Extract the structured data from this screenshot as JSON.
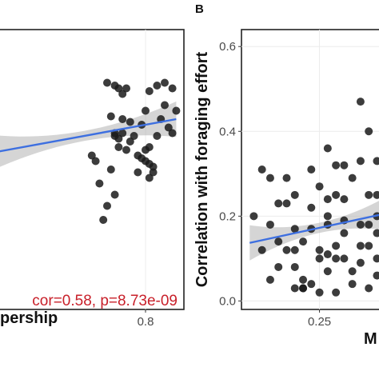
{
  "chart_data": [
    {
      "type": "scatter",
      "panel_label": "",
      "xlabel": "pership",
      "ylabel": "",
      "xlim": [
        0.4,
        0.9
      ],
      "ylim": [
        0.0,
        1.0
      ],
      "x_ticks": [
        0.8
      ],
      "y_ticks": [],
      "grid": true,
      "annotation": "cor=0.58, p=8.73e-09",
      "fit": {
        "x0": 0.4,
        "x1": 0.88,
        "y0": 0.56,
        "y1": 0.68
      },
      "points": [
        [
          0.7,
          0.81
        ],
        [
          0.72,
          0.8
        ],
        [
          0.73,
          0.79
        ],
        [
          0.74,
          0.77
        ],
        [
          0.75,
          0.79
        ],
        [
          0.76,
          0.67
        ],
        [
          0.77,
          0.62
        ],
        [
          0.79,
          0.66
        ],
        [
          0.8,
          0.71
        ],
        [
          0.81,
          0.78
        ],
        [
          0.83,
          0.8
        ],
        [
          0.85,
          0.81
        ],
        [
          0.87,
          0.79
        ],
        [
          0.83,
          0.62
        ],
        [
          0.81,
          0.58
        ],
        [
          0.8,
          0.53
        ],
        [
          0.82,
          0.51
        ],
        [
          0.81,
          0.52
        ],
        [
          0.82,
          0.49
        ],
        [
          0.81,
          0.47
        ],
        [
          0.79,
          0.54
        ],
        [
          0.78,
          0.55
        ],
        [
          0.76,
          0.6
        ],
        [
          0.75,
          0.57
        ],
        [
          0.74,
          0.68
        ],
        [
          0.73,
          0.61
        ],
        [
          0.72,
          0.63
        ],
        [
          0.71,
          0.69
        ],
        [
          0.72,
          0.62
        ],
        [
          0.74,
          0.63
        ],
        [
          0.71,
          0.5
        ],
        [
          0.72,
          0.41
        ],
        [
          0.7,
          0.37
        ],
        [
          0.69,
          0.32
        ],
        [
          0.68,
          0.45
        ],
        [
          0.67,
          0.53
        ],
        [
          0.66,
          0.55
        ],
        [
          0.84,
          0.68
        ],
        [
          0.86,
          0.65
        ],
        [
          0.87,
          0.63
        ],
        [
          0.85,
          0.73
        ],
        [
          0.78,
          0.49
        ],
        [
          0.8,
          0.57
        ],
        [
          0.73,
          0.58
        ],
        [
          0.88,
          0.71
        ]
      ]
    },
    {
      "type": "scatter",
      "panel_label": "B",
      "xlabel": "M",
      "ylabel": "Correlation with foraging effort",
      "xlim": [
        0.155,
        0.34
      ],
      "ylim": [
        -0.02,
        0.64
      ],
      "x_ticks": [
        0.25
      ],
      "y_ticks": [
        0.0,
        0.2,
        0.4,
        0.6
      ],
      "grid": true,
      "fit": {
        "x0": 0.165,
        "x1": 0.335,
        "y0": 0.137,
        "y1": 0.208
      },
      "points": [
        [
          0.17,
          0.2
        ],
        [
          0.18,
          0.31
        ],
        [
          0.19,
          0.29
        ],
        [
          0.19,
          0.05
        ],
        [
          0.2,
          0.08
        ],
        [
          0.21,
          0.23
        ],
        [
          0.22,
          0.03
        ],
        [
          0.22,
          0.12
        ],
        [
          0.23,
          0.03
        ],
        [
          0.23,
          0.14
        ],
        [
          0.24,
          0.31
        ],
        [
          0.25,
          0.27
        ],
        [
          0.26,
          0.24
        ],
        [
          0.26,
          0.36
        ],
        [
          0.27,
          0.32
        ],
        [
          0.27,
          0.25
        ],
        [
          0.28,
          0.32
        ],
        [
          0.29,
          0.29
        ],
        [
          0.3,
          0.47
        ],
        [
          0.3,
          0.33
        ],
        [
          0.31,
          0.25
        ],
        [
          0.31,
          0.13
        ],
        [
          0.32,
          0.06
        ],
        [
          0.32,
          0.25
        ],
        [
          0.33,
          0.28
        ],
        [
          0.33,
          0.37
        ],
        [
          0.34,
          0.22
        ],
        [
          0.24,
          0.22
        ],
        [
          0.22,
          0.17
        ],
        [
          0.22,
          0.08
        ],
        [
          0.26,
          0.07
        ],
        [
          0.27,
          0.1
        ],
        [
          0.28,
          0.1
        ],
        [
          0.29,
          0.07
        ],
        [
          0.3,
          0.13
        ],
        [
          0.31,
          0.03
        ],
        [
          0.32,
          0.1
        ],
        [
          0.33,
          0.03
        ],
        [
          0.34,
          0.03
        ],
        [
          0.25,
          0.12
        ],
        [
          0.21,
          0.29
        ],
        [
          0.19,
          0.18
        ],
        [
          0.23,
          0.05
        ],
        [
          0.24,
          0.04
        ],
        [
          0.26,
          0.11
        ],
        [
          0.28,
          0.16
        ],
        [
          0.3,
          0.18
        ],
        [
          0.32,
          0.16
        ],
        [
          0.33,
          0.18
        ],
        [
          0.34,
          0.36
        ],
        [
          0.33,
          0.1
        ],
        [
          0.29,
          0.04
        ],
        [
          0.27,
          0.02
        ],
        [
          0.25,
          0.02
        ],
        [
          0.23,
          0.03
        ],
        [
          0.21,
          0.12
        ],
        [
          0.2,
          0.14
        ],
        [
          0.18,
          0.12
        ],
        [
          0.31,
          0.4
        ],
        [
          0.32,
          0.33
        ],
        [
          0.33,
          0.43
        ],
        [
          0.34,
          0.46
        ],
        [
          0.34,
          0.12
        ],
        [
          0.33,
          0.25
        ],
        [
          0.28,
          0.24
        ],
        [
          0.27,
          0.13
        ],
        [
          0.26,
          0.2
        ],
        [
          0.24,
          0.17
        ],
        [
          0.22,
          0.25
        ],
        [
          0.2,
          0.23
        ],
        [
          0.31,
          0.18
        ],
        [
          0.3,
          0.09
        ],
        [
          0.33,
          0.07
        ],
        [
          0.34,
          0.08
        ],
        [
          0.32,
          0.2
        ],
        [
          0.28,
          0.19
        ],
        [
          0.26,
          0.18
        ],
        [
          0.25,
          0.1
        ]
      ]
    }
  ]
}
